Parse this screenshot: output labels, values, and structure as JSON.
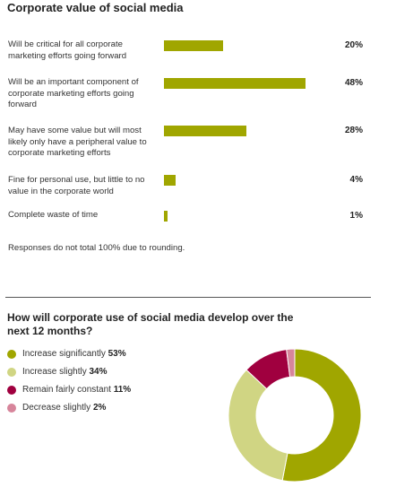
{
  "colors": {
    "bar": "#a0a600",
    "increase_significantly": "#a0a600",
    "increase_slightly": "#d0d583",
    "remain_fairly_constant": "#a0003f",
    "decrease_slightly": "#d7859b"
  },
  "chart_data": [
    {
      "type": "bar",
      "orientation": "horizontal",
      "title": "Corporate value of social media",
      "categories": [
        "Will be critical for all corporate marketing efforts going forward",
        "Will be an important component of corporate marketing efforts going forward",
        "May have some value but will most likely only have a peripheral value to corporate marketing efforts",
        "Fine for personal use, but little to no value in the corporate world",
        "Complete waste of time"
      ],
      "values": [
        20,
        48,
        28,
        4,
        1
      ],
      "value_labels": [
        "20%",
        "48%",
        "28%",
        "4%",
        "1%"
      ],
      "note": "Responses do not total 100% due to rounding."
    },
    {
      "type": "pie",
      "donut": true,
      "title": "How will corporate use of social media develop over the next 12 months?",
      "labels": [
        "Increase significantly",
        "Increase slightly",
        "Remain fairly constant",
        "Decrease slightly"
      ],
      "values": [
        53,
        34,
        11,
        2
      ],
      "value_labels": [
        "53%",
        "34%",
        "11%",
        "2%"
      ],
      "legend": "left"
    }
  ]
}
